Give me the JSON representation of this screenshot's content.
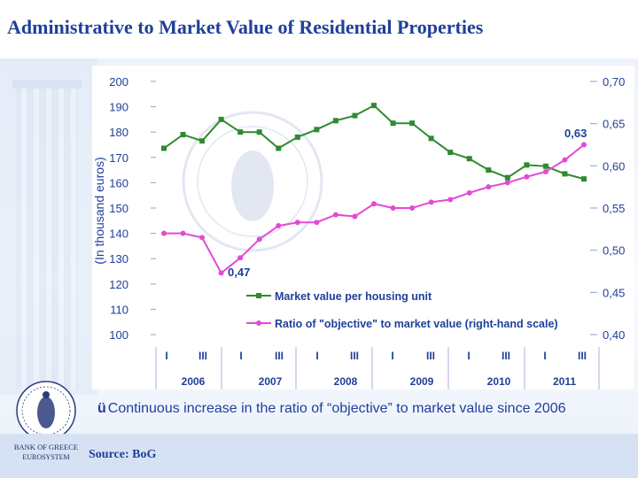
{
  "title": "Administrative to Market Value of Residential Properties",
  "footer": {
    "bank_line1": "BANK OF GREECE",
    "bank_line2": "EUROSYSTEM",
    "source": "Source: BoG"
  },
  "note": {
    "mark": "ü",
    "text": "Continuous increase in the ratio of “objective” to market value since 2006"
  },
  "colors": {
    "title": "#1f3f9a",
    "market_series": "#2e8b2e",
    "ratio_series": "#e24ad6",
    "footer": "#d6e2f4"
  },
  "chart_data": {
    "type": "line",
    "ylabel": "(In thousand euros)",
    "ylim": [
      100,
      200
    ],
    "y2lim": [
      0.4,
      0.7
    ],
    "y_ticks": [
      "200",
      "190",
      "180",
      "170",
      "160",
      "150",
      "140",
      "130",
      "120",
      "110",
      "100"
    ],
    "y2_ticks": [
      "0,70",
      "0,65",
      "0,60",
      "0,55",
      "0,50",
      "0,45",
      "0,40"
    ],
    "quarter_labels": [
      "I",
      "III",
      "I",
      "III",
      "I",
      "III",
      "I",
      "III",
      "I",
      "III",
      "I",
      "III"
    ],
    "year_labels": [
      "2006",
      "2007",
      "2008",
      "2009",
      "2010",
      "2011"
    ],
    "annotations": {
      "min_ratio": "0,47",
      "last_ratio": "0,63"
    },
    "series": [
      {
        "name": "Market value per housing unit",
        "axis": "left",
        "values": [
          173.6,
          179,
          176.5,
          185,
          180,
          180,
          173.6,
          178,
          181,
          184.5,
          186.5,
          190.5,
          183.5,
          183.5,
          177.5,
          172,
          169.5,
          165,
          162,
          167,
          166.5,
          163.5,
          161.5
        ]
      },
      {
        "name": "Ratio of \"objective\" to market value (right-hand scale)",
        "axis": "right",
        "values": [
          0.52,
          0.52,
          0.515,
          0.473,
          0.491,
          0.513,
          0.529,
          0.533,
          0.533,
          0.542,
          0.54,
          0.555,
          0.55,
          0.55,
          0.557,
          0.56,
          0.568,
          0.575,
          0.58,
          0.587,
          0.593,
          0.607,
          0.625
        ]
      }
    ]
  }
}
